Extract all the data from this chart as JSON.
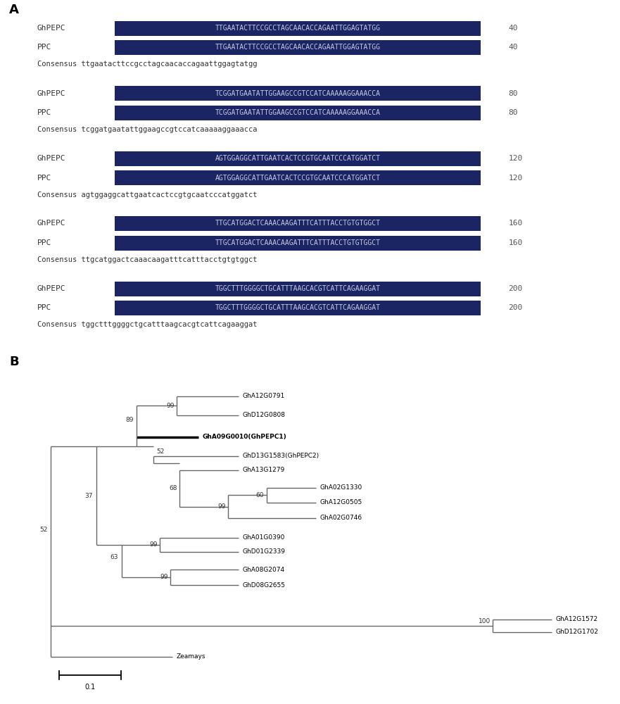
{
  "panel_A_label": "A",
  "panel_B_label": "B",
  "background_color": "#ffffff",
  "alignment_blocks": [
    {
      "sequences": [
        {
          "name": "GhPEPC",
          "seq": "TTGAATACTTCCGCCTAGCAACACCAGAATTGGAGTATGG",
          "num": "40"
        },
        {
          "name": "PPC",
          "seq": "TTGAATACTTCCGCCTAGCAACACCAGAATTGGAGTATGG",
          "num": "40"
        },
        {
          "name": "Consensus",
          "seq": "ttgaatacttccgcctagcaacaccagaattggagtatgg",
          "num": ""
        }
      ]
    },
    {
      "sequences": [
        {
          "name": "GhPEPC",
          "seq": "TCGGATGAATATTGGAAGCCGTCCATCAAAAAGGAAACCA",
          "num": "80"
        },
        {
          "name": "PPC",
          "seq": "TCGGATGAATATTGGAAGCCGTCCATCAAAAAGGAAACCA",
          "num": "80"
        },
        {
          "name": "Consensus",
          "seq": "tcggatgaatattggaagccgtccatcaaaaaggaaacca",
          "num": ""
        }
      ]
    },
    {
      "sequences": [
        {
          "name": "GhPEPC",
          "seq": "AGTGGAGGCATTGAATCACTCCGTGCAATCCCATGGATCT",
          "num": "120"
        },
        {
          "name": "PPC",
          "seq": "AGTGGAGGCATTGAATCACTCCGTGCAATCCCATGGATCT",
          "num": "120"
        },
        {
          "name": "Consensus",
          "seq": "agtggaggcattgaatcactccgtgcaatcccatggatct",
          "num": ""
        }
      ]
    },
    {
      "sequences": [
        {
          "name": "GhPEPC",
          "seq": "TTGCATGGACTCAAACAAGATTTCATTTACCTGTGTGGCT",
          "num": "160"
        },
        {
          "name": "PPC",
          "seq": "TTGCATGGACTCAAACAAGATTTCATTTACCTGTGTGGCT",
          "num": "160"
        },
        {
          "name": "Consensus",
          "seq": "ttgcatggactcaaacaagatttcatttacctgtgtggct",
          "num": ""
        }
      ]
    },
    {
      "sequences": [
        {
          "name": "GhPEPC",
          "seq": "TGGCTTTGGGGCTGCATTTAAGCACGTCATTCAGAAGGAT",
          "num": "200"
        },
        {
          "name": "PPC",
          "seq": "TGGCTTTGGGGCTGCATTTAAGCACGTCATTCAGAAGGAT",
          "num": "200"
        },
        {
          "name": "Consensus",
          "seq": "tggctttggggctgcatttaagcacgtcattcagaaggat",
          "num": ""
        }
      ]
    }
  ],
  "seq_bg_color": "#1c2563",
  "seq_text_color": "#c8cce8",
  "name_color": "#333333",
  "num_color": "#555555",
  "consensus_color": "#333333"
}
